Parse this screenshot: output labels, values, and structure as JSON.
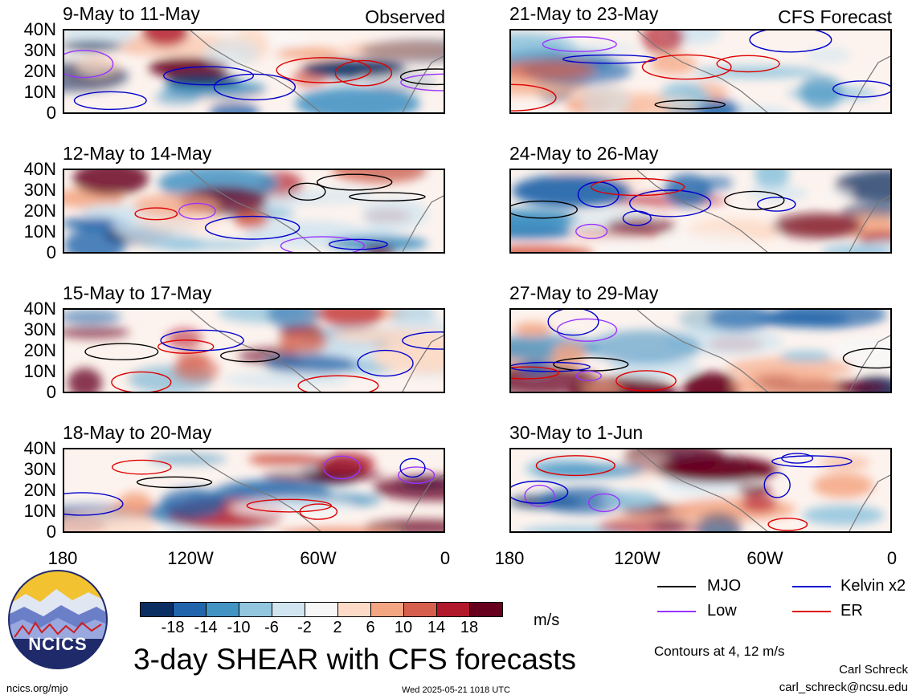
{
  "observed_label": "Observed",
  "forecast_label": "CFS Forecast",
  "main_title": "3-day SHEAR with CFS forecasts",
  "units": "m/s",
  "contour_note": "Contours at 4, 12 m/s",
  "author_name": "Carl Schreck",
  "author_email": "carl_schreck@ncsu.edu",
  "site_url": "ncics.org/mjo",
  "timestamp": "Wed 2025-05-21 1018 UTC",
  "logo_text": "NCICS",
  "lat_ticks": [
    "40N",
    "30N",
    "20N",
    "10N",
    "0"
  ],
  "lon_ticks": [
    "180",
    "120W",
    "60W",
    "0"
  ],
  "colorbar": {
    "colors": [
      "#0b2f63",
      "#2166ac",
      "#4393c3",
      "#92c5de",
      "#d1e5f0",
      "#f7f7f7",
      "#fddbc7",
      "#f4a582",
      "#d6604d",
      "#b2182b",
      "#67001f"
    ],
    "ticks": [
      "-18",
      "-14",
      "-10",
      "-6",
      "-2",
      "2",
      "6",
      "10",
      "14",
      "18"
    ]
  },
  "legend": [
    {
      "label": "MJO",
      "color": "#000000"
    },
    {
      "label": "Kelvin x2",
      "color": "#0000cc"
    },
    {
      "label": "Low",
      "color": "#9933ff"
    },
    {
      "label": "ER",
      "color": "#dd0000"
    }
  ],
  "chart_data": [
    {
      "type": "heatmap",
      "title": "9-May to 11-May",
      "group": "Observed"
    },
    {
      "type": "heatmap",
      "title": "12-May to 14-May",
      "group": "Observed"
    },
    {
      "type": "heatmap",
      "title": "15-May to 17-May",
      "group": "Observed"
    },
    {
      "type": "heatmap",
      "title": "18-May to 20-May",
      "group": "Observed"
    },
    {
      "type": "heatmap",
      "title": "21-May to 23-May",
      "group": "CFS Forecast"
    },
    {
      "type": "heatmap",
      "title": "24-May to 26-May",
      "group": "CFS Forecast"
    },
    {
      "type": "heatmap",
      "title": "27-May to 29-May",
      "group": "CFS Forecast"
    },
    {
      "type": "heatmap",
      "title": "30-May to 1-Jun",
      "group": "CFS Forecast"
    }
  ]
}
